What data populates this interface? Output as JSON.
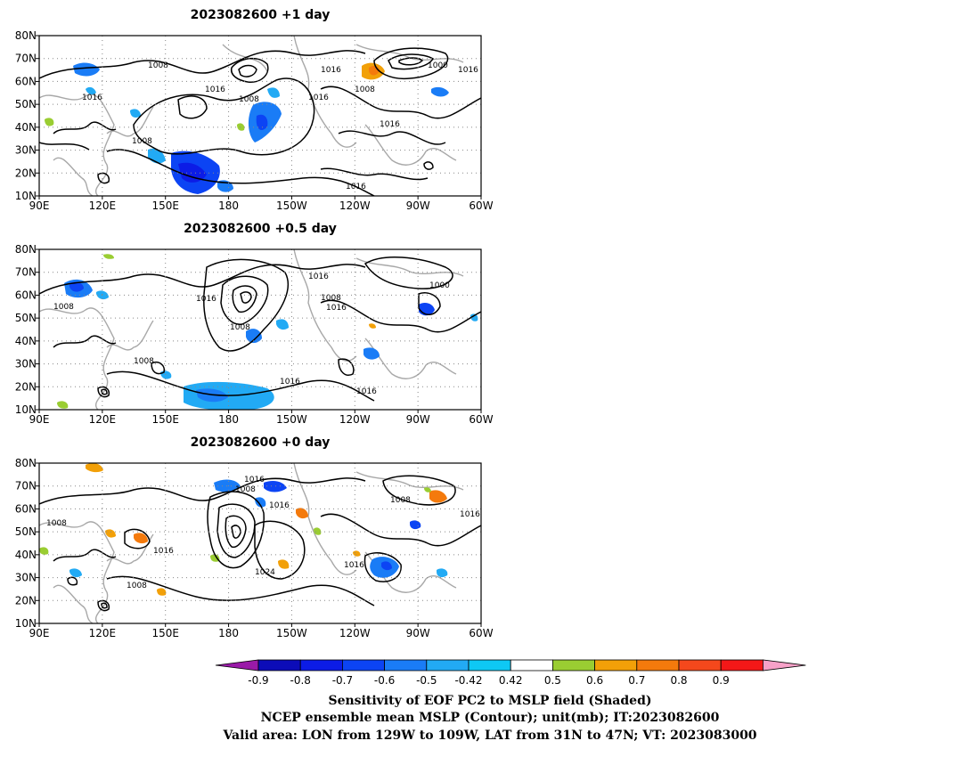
{
  "chart_data": [
    {
      "type": "heatmap",
      "title": "2023082600  +1 day",
      "xlim": [
        "90E",
        "60W"
      ],
      "ylim": [
        "10N",
        "80N"
      ],
      "grid": true,
      "xtick_labels": [
        "90E",
        "120E",
        "150E",
        "180",
        "150W",
        "120W",
        "90W",
        "60W"
      ],
      "ytick_labels": [
        "10N",
        "20N",
        "30N",
        "40N",
        "50N",
        "60N",
        "70N",
        "80N"
      ],
      "contour_labels": [
        "1008",
        "1016",
        "1016",
        "1016",
        "1000",
        "1016",
        "1008",
        "1008",
        "1016",
        "1016",
        "1008",
        "1016",
        "1008"
      ]
    },
    {
      "type": "heatmap",
      "title": "2023082600  +0.5 day",
      "xlim": [
        "90E",
        "60W"
      ],
      "ylim": [
        "10N",
        "80N"
      ],
      "grid": true,
      "xtick_labels": [
        "90E",
        "120E",
        "150E",
        "180",
        "150W",
        "120W",
        "90W",
        "60W"
      ],
      "ytick_labels": [
        "10N",
        "20N",
        "30N",
        "40N",
        "50N",
        "60N",
        "70N",
        "80N"
      ],
      "contour_labels": [
        "1016",
        "1000",
        "1008",
        "1016",
        "1016",
        "1008",
        "1008",
        "1008",
        "1016",
        "1016"
      ]
    },
    {
      "type": "heatmap",
      "title": "2023082600  +0 day",
      "xlim": [
        "90E",
        "60W"
      ],
      "ylim": [
        "10N",
        "80N"
      ],
      "grid": true,
      "xtick_labels": [
        "90E",
        "120E",
        "150E",
        "180",
        "150W",
        "120W",
        "90W",
        "60W"
      ],
      "ytick_labels": [
        "10N",
        "20N",
        "30N",
        "40N",
        "50N",
        "60N",
        "70N",
        "80N"
      ],
      "contour_labels": [
        "1016",
        "1008",
        "1016",
        "1008",
        "1016",
        "1008",
        "1016",
        "1024",
        "1016",
        "1008"
      ]
    }
  ],
  "colorbar": {
    "labels": [
      "-0.9",
      "-0.8",
      "-0.7",
      "-0.6",
      "-0.5",
      "-0.42",
      "0.42",
      "0.5",
      "0.6",
      "0.7",
      "0.8",
      "0.9"
    ],
    "colors": [
      "#9a1aa8",
      "#0c0cb8",
      "#0c1ce6",
      "#0c44f4",
      "#1a7cf6",
      "#22aaf4",
      "#0ec8f4",
      "#ffffff",
      "#9acd32",
      "#f2a008",
      "#f47a0c",
      "#f4481c",
      "#f41818",
      "#f7a1c8"
    ]
  },
  "footer": {
    "line1": "Sensitivity of EOF PC2 to MSLP field (Shaded)",
    "line2": "NCEP ensemble mean MSLP (Contour); unit(mb); IT:2023082600",
    "line3": "Valid area: LON from 129W to 109W, LAT from 31N to 47N; VT: 2023083000"
  }
}
